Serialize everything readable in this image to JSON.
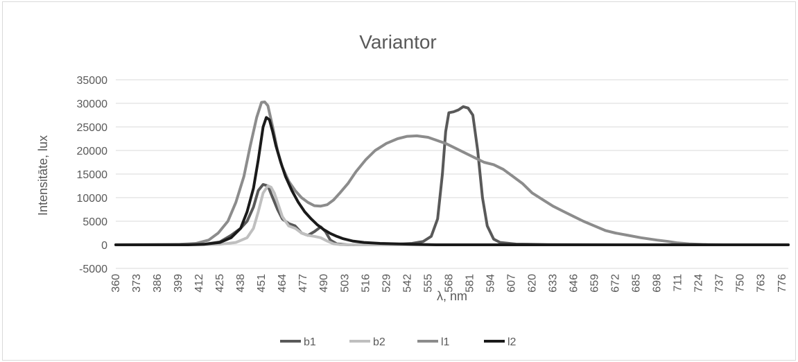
{
  "chart_data": {
    "type": "line",
    "title": "Variantor",
    "xlabel": "λ, nm",
    "ylabel": "Intensitāte, lux",
    "ylim": [
      -5000,
      35000
    ],
    "yticks": [
      -5000,
      0,
      5000,
      10000,
      15000,
      20000,
      25000,
      30000,
      35000
    ],
    "ytick_labels": [
      "-5000",
      "0",
      "5000",
      "10000",
      "15000",
      "20000",
      "25000",
      "30000",
      "35000"
    ],
    "xlim": [
      360,
      780
    ],
    "xticks": [
      360,
      373,
      386,
      399,
      412,
      425,
      438,
      451,
      464,
      477,
      490,
      503,
      516,
      529,
      542,
      555,
      568,
      581,
      594,
      607,
      620,
      633,
      646,
      659,
      672,
      685,
      698,
      711,
      724,
      737,
      750,
      763,
      776
    ],
    "xtick_labels": [
      "360",
      "373",
      "386",
      "399",
      "412",
      "425",
      "438",
      "451",
      "464",
      "477",
      "490",
      "503",
      "516",
      "529",
      "542",
      "555",
      "568",
      "581",
      "594",
      "607",
      "620",
      "633",
      "646",
      "659",
      "672",
      "685",
      "698",
      "711",
      "724",
      "737",
      "750",
      "763",
      "776"
    ],
    "grid": true,
    "legend_position": "bottom",
    "series": [
      {
        "name": "b1",
        "color": "#595959",
        "x": [
          360,
          400,
          415,
          425,
          432,
          438,
          442,
          446,
          449,
          452,
          455,
          458,
          461,
          464,
          468,
          472,
          476,
          480,
          484,
          488,
          491,
          494,
          498,
          505,
          520,
          535,
          545,
          552,
          557,
          561,
          564,
          566,
          568,
          571,
          574,
          577,
          580,
          583,
          586,
          589,
          592,
          596,
          600,
          610,
          630,
          680,
          780
        ],
        "values": [
          0,
          0,
          100,
          600,
          2000,
          3500,
          5000,
          8000,
          11500,
          12800,
          12500,
          10000,
          7500,
          5500,
          4500,
          4000,
          2500,
          2000,
          2800,
          3800,
          2800,
          1000,
          200,
          0,
          0,
          100,
          300,
          700,
          1800,
          5500,
          15000,
          24000,
          28000,
          28200,
          28600,
          29300,
          29000,
          27500,
          20000,
          10000,
          4000,
          1200,
          500,
          150,
          50,
          0,
          0
        ]
      },
      {
        "name": "b2",
        "color": "#bfbfbf",
        "x": [
          360,
          410,
          425,
          435,
          442,
          446,
          449,
          452,
          455,
          457,
          459,
          461,
          464,
          468,
          472,
          476,
          480,
          484,
          488,
          492,
          496,
          500,
          510,
          780
        ],
        "values": [
          0,
          0,
          100,
          500,
          1500,
          3500,
          7000,
          11000,
          12500,
          12200,
          11000,
          9000,
          6000,
          4000,
          3500,
          2500,
          2000,
          1800,
          1500,
          800,
          200,
          50,
          0,
          0
        ]
      },
      {
        "name": "l1",
        "color": "#8c8c8c",
        "x": [
          360,
          400,
          410,
          418,
          424,
          430,
          435,
          440,
          444,
          448,
          451,
          453,
          455,
          458,
          461,
          464,
          468,
          472,
          476,
          480,
          484,
          488,
          492,
          496,
          500,
          505,
          510,
          516,
          522,
          529,
          536,
          542,
          548,
          555,
          560,
          566,
          572,
          578,
          584,
          590,
          596,
          602,
          608,
          614,
          620,
          627,
          633,
          640,
          646,
          652,
          659,
          666,
          672,
          680,
          688,
          698,
          705,
          711,
          718,
          724,
          730,
          740,
          760,
          780
        ],
        "values": [
          0,
          100,
          300,
          1000,
          2500,
          5000,
          9000,
          14500,
          21000,
          27000,
          30200,
          30300,
          29500,
          25000,
          20000,
          16500,
          13500,
          11500,
          10000,
          9000,
          8300,
          8200,
          8500,
          9500,
          11000,
          13000,
          15500,
          18000,
          20000,
          21500,
          22500,
          23000,
          23100,
          22800,
          22200,
          21500,
          20500,
          19500,
          18500,
          17500,
          17000,
          16000,
          14500,
          13000,
          11000,
          9500,
          8200,
          7000,
          6000,
          5000,
          4000,
          3000,
          2500,
          2000,
          1500,
          1000,
          700,
          400,
          200,
          100,
          50,
          0,
          0,
          0
        ]
      },
      {
        "name": "l2",
        "color": "#1a1a1a",
        "x": [
          360,
          405,
          415,
          425,
          432,
          438,
          442,
          446,
          449,
          452,
          454,
          456,
          458,
          460,
          463,
          466,
          470,
          474,
          478,
          482,
          486,
          490,
          494,
          498,
          502,
          508,
          515,
          525,
          535,
          545,
          560,
          580,
          620,
          700,
          780
        ],
        "values": [
          0,
          0,
          100,
          500,
          1500,
          3500,
          7000,
          12000,
          18000,
          25000,
          27000,
          26500,
          24000,
          21000,
          17500,
          14500,
          11500,
          9000,
          7000,
          5500,
          4200,
          3200,
          2400,
          1800,
          1300,
          800,
          500,
          300,
          200,
          100,
          0,
          0,
          0,
          0,
          0
        ]
      }
    ]
  }
}
